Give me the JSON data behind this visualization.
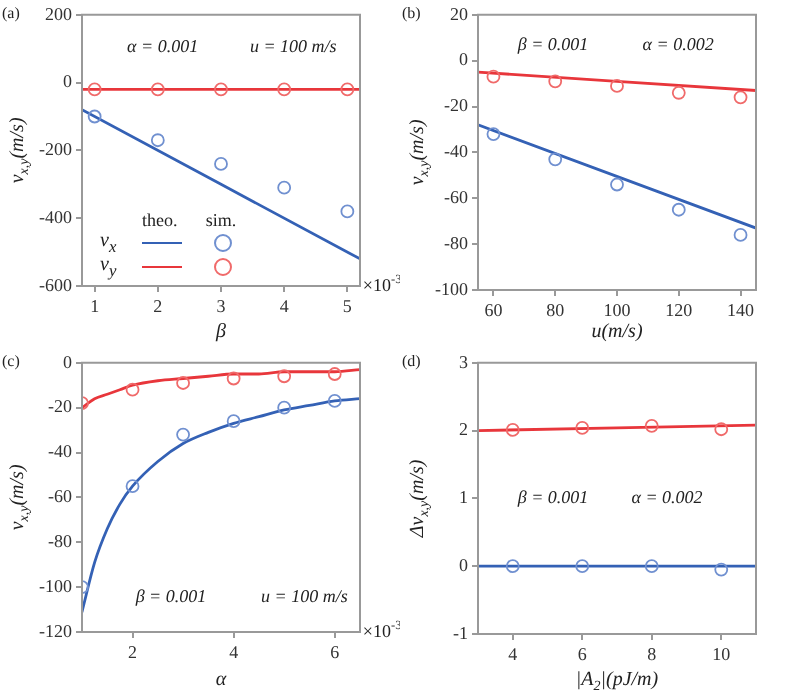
{
  "chart_data": [
    {
      "type": "line",
      "title": "(a)",
      "xlabel": "β",
      "ylabel": "v$_{x,y}$(m/s)",
      "annotations": [
        "α = 0.001",
        "u = 100 m/s",
        "theo.",
        "sim.",
        "×10$^{-3}$"
      ],
      "xlim": [
        0.8,
        5.2
      ],
      "xticks": [
        1,
        2,
        3,
        4,
        5
      ],
      "ylim": [
        -600,
        200
      ],
      "yticks": [
        -600,
        -400,
        -200,
        0,
        200
      ],
      "legend": "bottom left",
      "series": [
        {
          "name": "v$_{x}$",
          "type": "line",
          "color": "#3461b5",
          "x": [
            0.8,
            5.2
          ],
          "values": [
            -80,
            -520
          ]
        },
        {
          "name": "v$_{y}$",
          "type": "line",
          "color": "#e8363b",
          "x": [
            0.8,
            5.2
          ],
          "values": [
            -20,
            -20
          ]
        },
        {
          "type": "scatter",
          "marker": "circle",
          "color": "#7090d0",
          "x": [
            1,
            2,
            3,
            4,
            5
          ],
          "values": [
            -100,
            -170,
            -240,
            -310,
            -380
          ]
        },
        {
          "type": "scatter",
          "marker": "circle",
          "color": "#f06a6a",
          "x": [
            1,
            2,
            3,
            4,
            5
          ],
          "values": [
            -20,
            -20,
            -20,
            -20,
            -20
          ]
        }
      ]
    },
    {
      "type": "line",
      "title": "(b)",
      "xlabel": "u(m/s)",
      "ylabel": "v$_{x,y}$(m/s)",
      "annotations": [
        "β = 0.001",
        "α = 0.002"
      ],
      "xlim": [
        55,
        145
      ],
      "xticks": [
        60,
        80,
        100,
        120,
        140
      ],
      "ylim": [
        -100,
        20
      ],
      "yticks": [
        -100,
        -80,
        -60,
        -40,
        -20,
        0,
        20
      ],
      "series": [
        {
          "type": "line",
          "color": "#3461b5",
          "x": [
            55,
            145
          ],
          "values": [
            -28,
            -73
          ]
        },
        {
          "type": "line",
          "color": "#e8363b",
          "x": [
            55,
            145
          ],
          "values": [
            -5,
            -13
          ]
        },
        {
          "type": "scatter",
          "marker": "circle",
          "color": "#7090d0",
          "x": [
            60,
            80,
            100,
            120,
            140
          ],
          "values": [
            -32,
            -43,
            -54,
            -65,
            -76
          ]
        },
        {
          "type": "scatter",
          "marker": "circle",
          "color": "#f06a6a",
          "x": [
            60,
            80,
            100,
            120,
            140
          ],
          "values": [
            -7,
            -9,
            -11,
            -14,
            -16
          ]
        }
      ]
    },
    {
      "type": "line",
      "title": "(c)",
      "xlabel": "α",
      "ylabel": "v$_{x,y}$(m/s)",
      "annotations": [
        "β = 0.001",
        "u = 100 m/s",
        "×10$^{-3}$"
      ],
      "xlim": [
        1,
        6.5
      ],
      "xticks": [
        2,
        4,
        6
      ],
      "ylim": [
        -120,
        0
      ],
      "yticks": [
        -120,
        -100,
        -80,
        -60,
        -40,
        -20,
        0
      ],
      "series": [
        {
          "type": "line",
          "color": "#3461b5",
          "x": [
            1,
            1.25,
            1.5,
            1.75,
            2,
            2.5,
            3,
            3.5,
            4,
            4.5,
            5,
            5.5,
            6,
            6.5
          ],
          "values": [
            -111,
            -89,
            -74,
            -63,
            -55,
            -44,
            -36,
            -31,
            -27,
            -24,
            -21,
            -19,
            -17,
            -16
          ]
        },
        {
          "type": "line",
          "color": "#e8363b",
          "x": [
            1,
            1.25,
            1.5,
            1.75,
            2,
            2.5,
            3,
            3.5,
            4,
            4.5,
            5,
            5.5,
            6,
            6.5
          ],
          "values": [
            -20,
            -16,
            -14,
            -12,
            -10,
            -8,
            -7,
            -6,
            -5,
            -5,
            -4,
            -4,
            -4,
            -3
          ]
        },
        {
          "type": "scatter",
          "marker": "circle",
          "color": "#7090d0",
          "x": [
            1,
            2,
            3,
            4,
            5,
            6
          ],
          "values": [
            -100,
            -55,
            -32,
            -26,
            -20,
            -17
          ]
        },
        {
          "type": "scatter",
          "marker": "circle",
          "color": "#f06a6a",
          "x": [
            1,
            2,
            3,
            4,
            5,
            6
          ],
          "values": [
            -18,
            -12,
            -9,
            -7,
            -6,
            -5
          ]
        }
      ]
    },
    {
      "type": "line",
      "title": "(d)",
      "xlabel": "|A$_{2}$|(pJ/m)",
      "ylabel": "Δv$_{x,y}$(m/s)",
      "annotations": [
        "β = 0.001",
        "α = 0.002"
      ],
      "xlim": [
        3,
        11
      ],
      "xticks": [
        4,
        6,
        8,
        10
      ],
      "ylim": [
        -1,
        3
      ],
      "yticks": [
        -1,
        0,
        1,
        2,
        3
      ],
      "series": [
        {
          "type": "line",
          "color": "#3461b5",
          "x": [
            3,
            11
          ],
          "values": [
            0,
            0
          ]
        },
        {
          "type": "line",
          "color": "#e8363b",
          "x": [
            3,
            11
          ],
          "values": [
            2,
            2.08
          ]
        },
        {
          "type": "scatter",
          "marker": "circle",
          "color": "#7090d0",
          "x": [
            4,
            6,
            8,
            10
          ],
          "values": [
            0,
            0,
            0,
            -0.05
          ]
        },
        {
          "type": "scatter",
          "marker": "circle",
          "color": "#f06a6a",
          "x": [
            4,
            6,
            8,
            10
          ],
          "values": [
            2.01,
            2.04,
            2.07,
            2.02
          ]
        }
      ]
    }
  ]
}
